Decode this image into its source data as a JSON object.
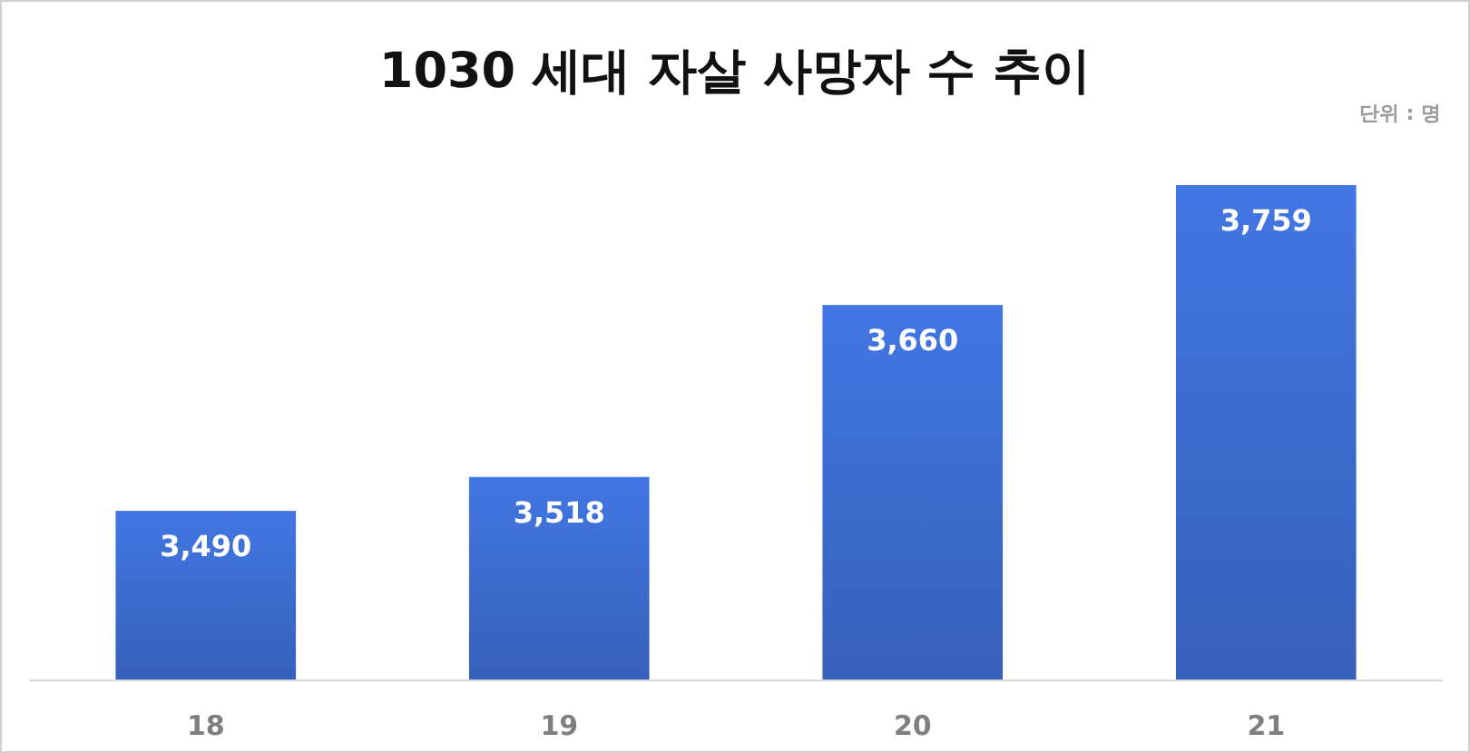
{
  "chart_data": {
    "type": "bar",
    "title": "1030 세대 자살 사망자 수 추이",
    "annotations": [
      "단위 : 명"
    ],
    "categories": [
      "18",
      "19",
      "20",
      "21"
    ],
    "values": [
      3490,
      3518,
      3660,
      3759
    ],
    "value_labels": [
      "3,490",
      "3,518",
      "3,660",
      "3,759"
    ],
    "color": "#3a68c8",
    "ylim": [
      3350,
      3759
    ]
  }
}
